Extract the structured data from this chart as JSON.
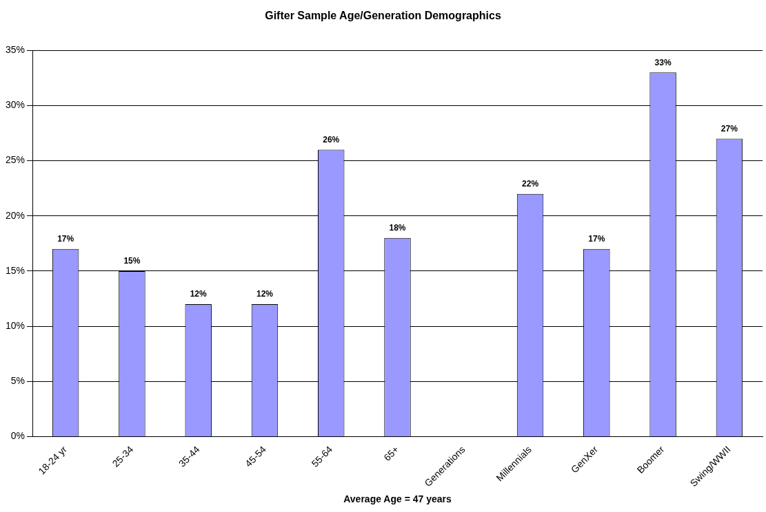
{
  "chart_data": {
    "type": "bar",
    "title": "Gifter Sample Age/Generation Demographics",
    "xlabel": "Average Age = 47 years",
    "categories": [
      "18-24 yr",
      "25-34",
      "35-44",
      "45-54",
      "55-64",
      "65+",
      "Generations",
      "Millennials",
      "GenXer",
      "Boomer",
      "Swing/WWII"
    ],
    "values": [
      17,
      15,
      12,
      12,
      26,
      18,
      null,
      22,
      17,
      33,
      27
    ],
    "value_labels": [
      "17%",
      "15%",
      "12%",
      "12%",
      "26%",
      "18%",
      null,
      "22%",
      "17%",
      "33%",
      "27%"
    ],
    "color": "#9999ff",
    "ylim": [
      0,
      35
    ],
    "yticks": [
      {
        "value": 0,
        "label": "0%"
      },
      {
        "value": 5,
        "label": "5%"
      },
      {
        "value": 10,
        "label": "10%"
      },
      {
        "value": 15,
        "label": "15%"
      },
      {
        "value": 20,
        "label": "20%"
      },
      {
        "value": 25,
        "label": "25%"
      },
      {
        "value": 30,
        "label": "30%"
      },
      {
        "value": 35,
        "label": "35%"
      }
    ],
    "grid": "y",
    "legend": false
  }
}
